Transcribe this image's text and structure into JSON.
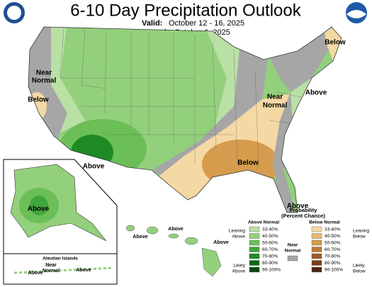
{
  "header": {
    "title": "6-10 Day Precipitation Outlook",
    "valid_label": "Valid:",
    "valid_dates": "October 12 - 16, 2025",
    "issued_label": "Issued:",
    "issued_date": "October 6, 2025"
  },
  "conus_labels": {
    "ne_below": "Below",
    "west_near": [
      "Near",
      "Normal"
    ],
    "ca_below": "Below",
    "east_near": [
      "Near",
      "Normal"
    ],
    "ne_above": "Above",
    "se_below": "Below",
    "sw_above": "Above",
    "fl_above": "Above"
  },
  "alaska_labels": {
    "above": "Above"
  },
  "aleutian_labels": {
    "title": "Aleutian Islands",
    "near": [
      "Near",
      "Normal"
    ],
    "above_1": "Above",
    "above_2": "Above"
  },
  "hawaii_labels": {
    "above_1": "Above",
    "above_2": "Above",
    "above_3": "Above"
  },
  "legend": {
    "title": [
      "Probability",
      "(Percent Chance)"
    ],
    "above": {
      "heading": "Above Normal",
      "leaning": [
        "Leaning",
        "Above"
      ],
      "likely": [
        "Likely",
        "Above"
      ],
      "bins": [
        {
          "label": "33-40%",
          "color": "#b9e0a5"
        },
        {
          "label": "40-50%",
          "color": "#93d07c"
        },
        {
          "label": "50-60%",
          "color": "#6cbf57"
        },
        {
          "label": "60-70%",
          "color": "#3fa63c"
        },
        {
          "label": "70-80%",
          "color": "#1f8a24"
        },
        {
          "label": "80-90%",
          "color": "#0b6a14"
        },
        {
          "label": "90-100%",
          "color": "#054a0c"
        }
      ]
    },
    "below": {
      "heading": "Below Normal",
      "leaning": [
        "Leaning",
        "Below"
      ],
      "likely": [
        "Likely",
        "Below"
      ],
      "bins": [
        {
          "label": "33-40%",
          "color": "#f5d9a4"
        },
        {
          "label": "40-50%",
          "color": "#e7b874"
        },
        {
          "label": "50-60%",
          "color": "#d69c4d"
        },
        {
          "label": "60-70%",
          "color": "#be7b33"
        },
        {
          "label": "70-80%",
          "color": "#9e5a26"
        },
        {
          "label": "80-90%",
          "color": "#7a3f1a"
        },
        {
          "label": "90-100%",
          "color": "#4f2510"
        }
      ]
    },
    "near": {
      "label": [
        "Near",
        "Normal"
      ],
      "color": "#a6a6a6"
    }
  }
}
